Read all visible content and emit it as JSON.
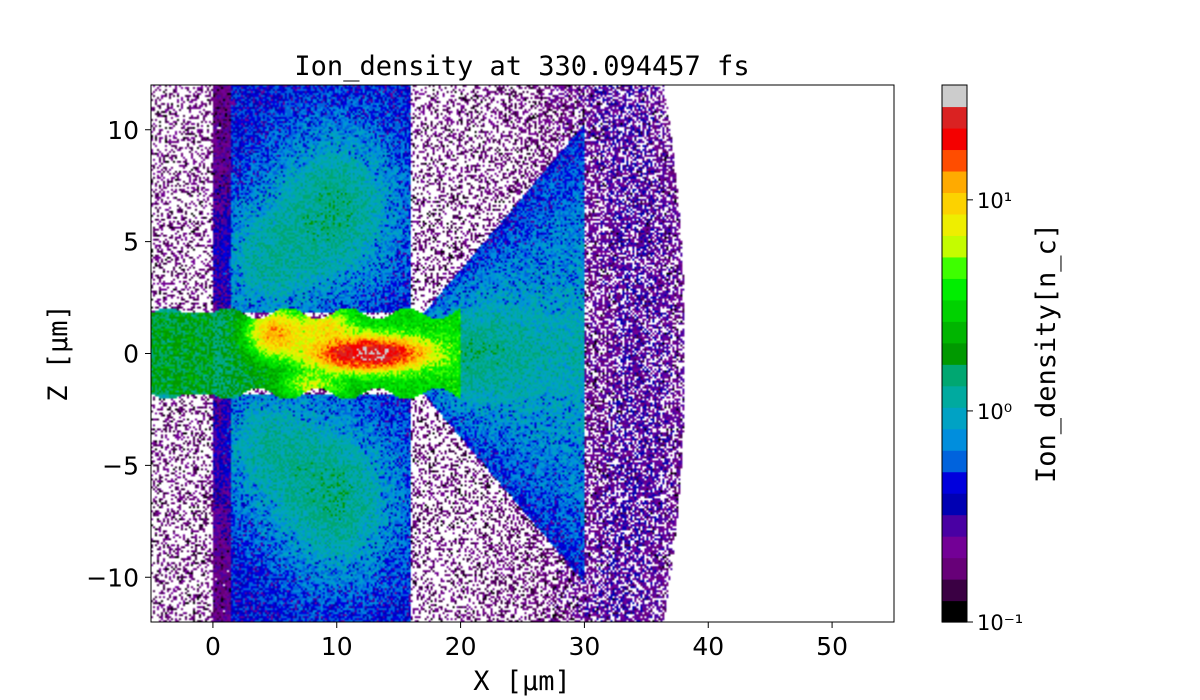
{
  "chart_data": {
    "type": "heatmap",
    "title": "Ion_density at 330.094457 fs",
    "xlabel": "X [μm]",
    "ylabel": "Z [μm]",
    "xlim": [
      -5,
      55
    ],
    "ylim": [
      -12,
      12
    ],
    "x_ticks": [
      0,
      10,
      20,
      30,
      40,
      50
    ],
    "y_ticks": [
      -10,
      -5,
      0,
      5,
      10
    ],
    "x_tick_labels": [
      "0",
      "10",
      "20",
      "30",
      "40",
      "50"
    ],
    "y_tick_labels": [
      "−10",
      "−5",
      "0",
      "5",
      "10"
    ],
    "colorbar": {
      "label": "Ion_density[n_c]",
      "scale": "log",
      "range": [
        0.1,
        35
      ],
      "ticks": [
        0.1,
        1,
        10
      ],
      "tick_labels": [
        "10⁻¹",
        "10⁰",
        "10¹"
      ],
      "colormap": "nipy_spectral",
      "levels": 25
    },
    "description_features": {
      "dense_channel": {
        "x_range": [
          -5,
          19
        ],
        "z_range": [
          -2,
          2
        ],
        "peak_density": 30,
        "peak_x": 12,
        "peak_z": 0
      },
      "upper_lobe": {
        "x_range": [
          0,
          16
        ],
        "z_range": [
          2,
          12
        ],
        "density": 0.6
      },
      "lower_lobe": {
        "x_range": [
          0,
          16
        ],
        "z_range": [
          -12,
          -2
        ],
        "density": 0.6
      },
      "expanding_cone": {
        "x_range": [
          18,
          32
        ],
        "density": 0.5
      },
      "outer_shell_radius": 42
    }
  }
}
